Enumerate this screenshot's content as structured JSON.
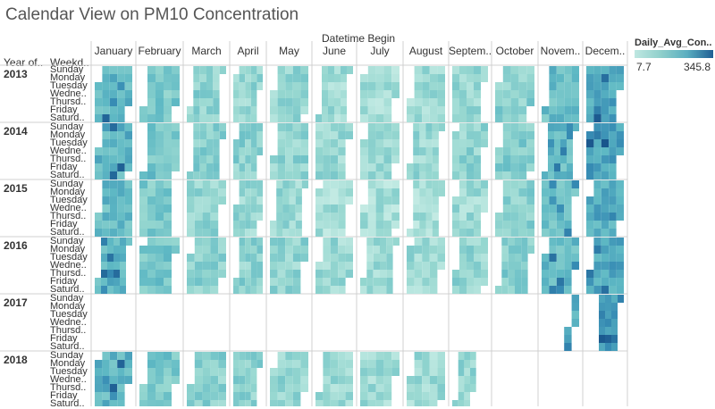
{
  "title": "Calendar View on PM10 Concentration",
  "column_header": "Datetime Begin",
  "row_header_year": "Year of..",
  "row_header_weekday": "Weekd..",
  "months": [
    "January",
    "February",
    "March",
    "April",
    "May",
    "June",
    "July",
    "August",
    "Septem..",
    "October",
    "Novem..",
    "Decem.."
  ],
  "years": [
    "2013",
    "2014",
    "2015",
    "2016",
    "2017",
    "2018"
  ],
  "weekdays": [
    "Sunday",
    "Monday",
    "Tuesday",
    "Wedne..",
    "Thursd..",
    "Friday",
    "Saturd.."
  ],
  "legend": {
    "title": "Daily_Avg_Con..",
    "min_label": "7.7",
    "max_label": "345.8"
  },
  "chart_data": {
    "type": "heatmap",
    "title": "Calendar View on PM10 Concentration",
    "x_field": "Datetime Begin (month / week)",
    "y_field": "Year / Weekday",
    "value_field": "Daily_Avg_Con..",
    "value_range": [
      7.7,
      345.8
    ],
    "colors": {
      "low": "#bfe7e1",
      "mid": "#5aaec0",
      "high": "#1f5f94"
    },
    "years": [
      2013,
      2014,
      2015,
      2016,
      2017,
      2018
    ],
    "coverage": {
      "2013": "Jan-Dec",
      "2014": "Jan-Dec",
      "2015": "Jan-Dec",
      "2016": "Jan-Dec",
      "2017": "partial (few days in November, December)",
      "2018": "Jan-Sep (partial)"
    },
    "notes": "Higher concentrations appear in January and November-December; summer months are lowest."
  }
}
